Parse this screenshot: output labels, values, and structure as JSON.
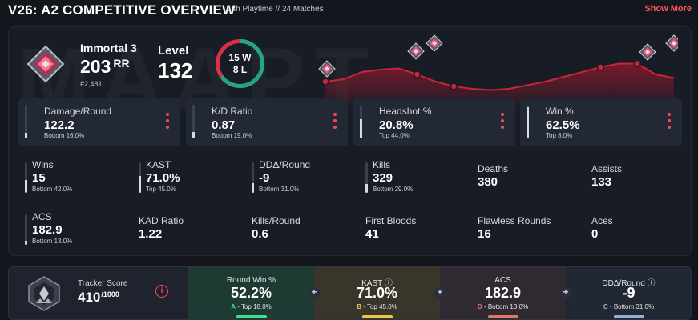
{
  "header": {
    "title": "V26: A2 COMPETITIVE OVERVIEW",
    "playtime": "13h Playtime",
    "separator": "//",
    "matches": "24 Matches",
    "show_more": "Show More"
  },
  "watermark": "MAAPT",
  "rank": {
    "name": "Immortal 3",
    "rr_value": "203",
    "rr_label": "RR",
    "position": "#2,481",
    "icon": "immortal-rank-icon"
  },
  "level": {
    "label": "Level",
    "value": "132"
  },
  "record": {
    "wins": "15 W",
    "losses": "8 L",
    "win_fraction": 0.652
  },
  "rr_history": {
    "points": [
      0.12,
      0.14,
      0.2,
      0.22,
      0.23,
      0.18,
      0.12,
      0.08,
      0.06,
      0.05,
      0.06,
      0.09,
      0.12,
      0.16,
      0.2,
      0.24,
      0.27,
      0.27,
      0.18,
      0.15
    ],
    "rank_icon_points": [
      0,
      5,
      7,
      15,
      17
    ],
    "colors": {
      "line": "#c8243b",
      "fill": "#8a1a2c"
    }
  },
  "cards": [
    {
      "label": "Damage/Round",
      "value": "122.2",
      "sub": "Bottom 16.0%",
      "percentile": 0.16
    },
    {
      "label": "K/D Ratio",
      "value": "0.87",
      "sub": "Bottom 19.0%",
      "percentile": 0.19
    },
    {
      "label": "Headshot %",
      "value": "20.8%",
      "sub": "Top 44.0%",
      "percentile": 0.56
    },
    {
      "label": "Win %",
      "value": "62.5%",
      "sub": "Top 8.0%",
      "percentile": 0.92
    }
  ],
  "stats_row1": [
    {
      "label": "Wins",
      "value": "15",
      "sub": "Bottom 42.0%",
      "percentile": 0.42
    },
    {
      "label": "KAST",
      "value": "71.0%",
      "sub": "Top 45.0%",
      "percentile": 0.55
    },
    {
      "label": "DDΔ/Round",
      "value": "-9",
      "sub": "Bottom 31.0%",
      "percentile": 0.31
    },
    {
      "label": "Kills",
      "value": "329",
      "sub": "Bottom 29.0%",
      "percentile": 0.29
    },
    {
      "label": "Deaths",
      "value": "380"
    },
    {
      "label": "Assists",
      "value": "133"
    }
  ],
  "stats_row2": [
    {
      "label": "ACS",
      "value": "182.9",
      "sub": "Bottom 13.0%",
      "percentile": 0.13
    },
    {
      "label": "KAD Ratio",
      "value": "1.22"
    },
    {
      "label": "Kills/Round",
      "value": "0.6"
    },
    {
      "label": "First Bloods",
      "value": "41"
    },
    {
      "label": "Flawless Rounds",
      "value": "16"
    },
    {
      "label": "Aces",
      "value": "0"
    }
  ],
  "tracker": {
    "label": "Tracker Score",
    "value": "410",
    "max": "/1000",
    "info_icon": "i",
    "cells": [
      {
        "label": "Round Win %",
        "value": "52.2%",
        "grade": "A",
        "sub": " - Top 18.0%",
        "color": "#3fe08a",
        "bg": "#1d3a33"
      },
      {
        "label": "KAST ⓘ",
        "value": "71.0%",
        "grade": "B",
        "sub": " - Top 45.0%",
        "color": "#f4c34a",
        "bg": "#38352a"
      },
      {
        "label": "ACS",
        "value": "182.9",
        "grade": "D",
        "sub": " - Bottom 13.0%",
        "color": "#e0786a",
        "bg": "#2f2a31"
      },
      {
        "label": "DDΔ/Round ⓘ",
        "value": "-9",
        "grade": "C",
        "sub": " - Bottom 31.0%",
        "color": "#8fb4d8",
        "bg": "#212834"
      }
    ]
  }
}
